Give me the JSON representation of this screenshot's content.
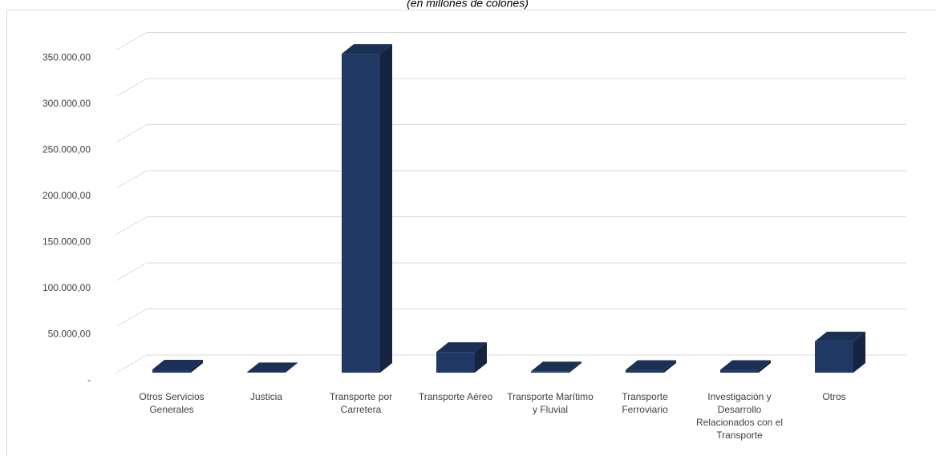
{
  "chart_data": {
    "type": "bar3d",
    "title": "(en millones de colones)",
    "categories": [
      "Otros Servicios Generales",
      "Justicia",
      "Transporte por Carretera",
      "Transporte Aéreo",
      "Transporte Marítimo y Fluvial",
      "Transporte Ferroviario",
      "Investigación y Desarrollo Relacionados con el Transporte",
      "Otros"
    ],
    "values": [
      3500,
      500,
      346000,
      22500,
      1500,
      3000,
      3000,
      34000
    ],
    "color": "#1f3864",
    "ylim": [
      0,
      350000
    ],
    "yticks": [
      {
        "value": 0,
        "label": "-"
      },
      {
        "value": 50000,
        "label": "50.000,00"
      },
      {
        "value": 100000,
        "label": "100.000,00"
      },
      {
        "value": 150000,
        "label": "150.000,00"
      },
      {
        "value": 200000,
        "label": "200.000,00"
      },
      {
        "value": 250000,
        "label": "250.000,00"
      },
      {
        "value": 300000,
        "label": "300.000,00"
      },
      {
        "value": 350000,
        "label": "350.000,00"
      }
    ],
    "grid": true
  }
}
